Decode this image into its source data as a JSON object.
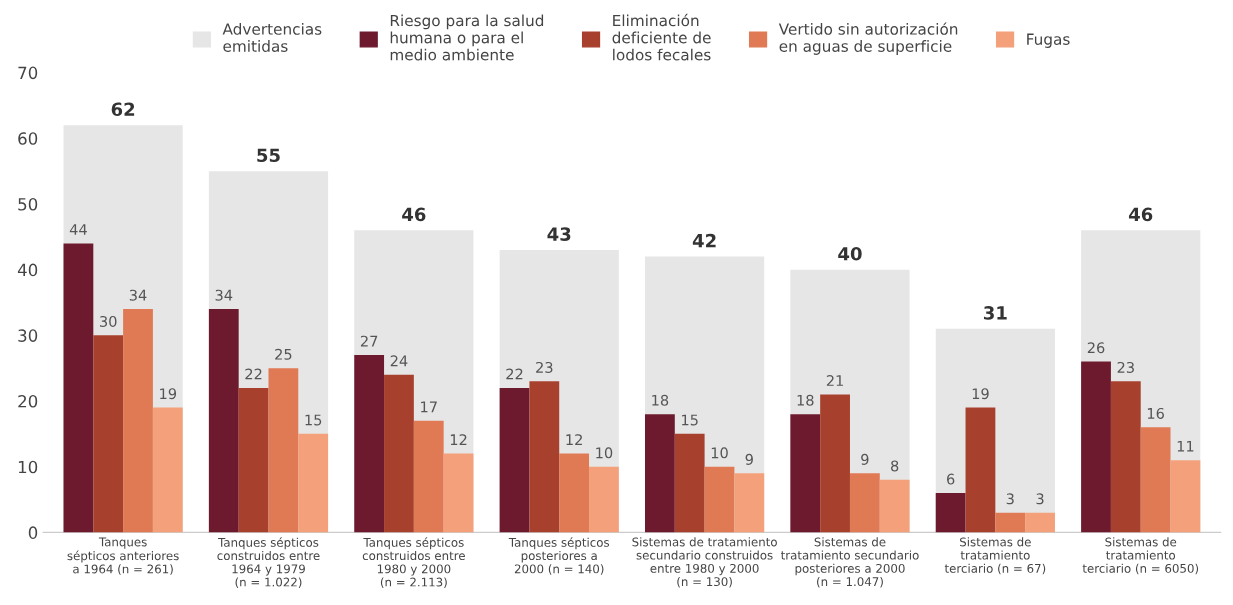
{
  "chart_data": {
    "type": "bar",
    "categories": [
      "Tanques\nsépticos anteriores\na 1964 (n = 261)",
      "Tanques sépticos\nconstruidos entre\n1964 y 1979\n(n = 1.022)",
      "Tanques sépticos\nconstruidos entre\n1980 y 2000\n(n = 2.113)",
      "Tanques sépticos\nposteriores a\n2000 (n = 140)",
      "Sistemas de tratamiento\nsecundario construidos\nentre 1980 y 2000\n(n = 130)",
      "Sistemas de\ntratamiento secundario\nposteriores a 2000\n(n = 1.047)",
      "Sistemas de\ntratamiento\nterciario (n = 67)",
      "Sistemas de\ntratamiento\nterciario (n = 6050)"
    ],
    "series": [
      {
        "name": "Advertencias\nemitidas",
        "color": "#e6e6e6",
        "values": [
          62,
          55,
          46,
          43,
          42,
          40,
          31,
          46
        ]
      },
      {
        "name": "Riesgo para la salud\nhumana o para el\nmedio ambiente",
        "color": "#6e1a2e",
        "values": [
          44,
          34,
          27,
          22,
          18,
          18,
          6,
          26
        ]
      },
      {
        "name": "Eliminación\ndeficiente de\nlodos fecales",
        "color": "#a8402e",
        "values": [
          30,
          22,
          24,
          23,
          15,
          21,
          19,
          23
        ]
      },
      {
        "name": "Vertido sin autorización\nen aguas de superficie",
        "color": "#e07a55",
        "values": [
          34,
          25,
          17,
          12,
          10,
          9,
          3,
          16
        ]
      },
      {
        "name": "Fugas",
        "color": "#f4a07a",
        "values": [
          19,
          15,
          12,
          10,
          9,
          8,
          3,
          11
        ]
      }
    ],
    "ylim": [
      0,
      70
    ],
    "yticks": [
      0,
      10,
      20,
      30,
      40,
      50,
      60,
      70
    ],
    "data_labels": true,
    "grid": false,
    "legend": "top"
  }
}
